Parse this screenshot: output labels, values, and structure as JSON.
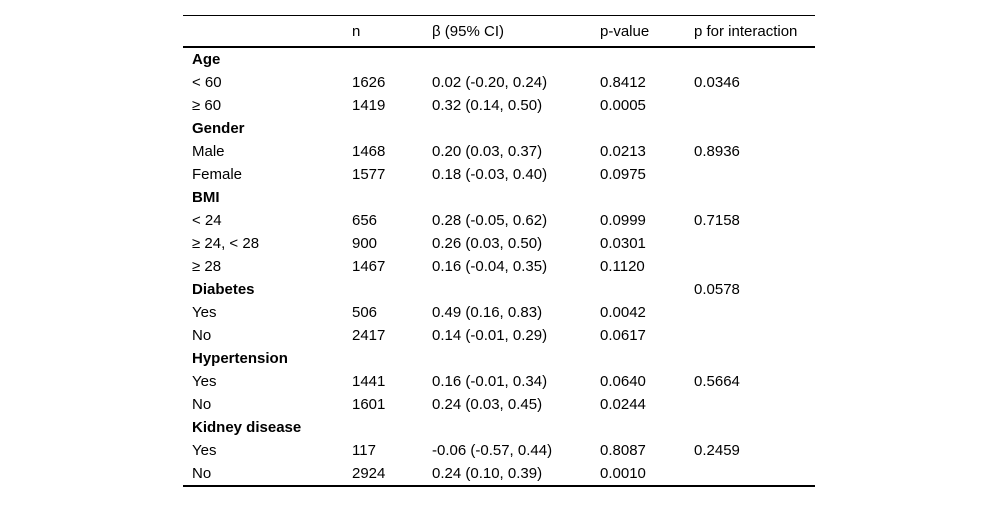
{
  "table": {
    "columns": [
      "",
      "n",
      "β (95% CI)",
      "p-value",
      "p for interaction"
    ],
    "rows": [
      {
        "group": true,
        "label": "Age",
        "n": "",
        "beta": "",
        "p": "",
        "p_interaction": ""
      },
      {
        "group": false,
        "label": "< 60",
        "n": "1626",
        "beta": "0.02 (-0.20, 0.24)",
        "p": "0.8412",
        "p_interaction": "0.0346"
      },
      {
        "group": false,
        "label": "≥ 60",
        "n": "1419",
        "beta": "0.32 (0.14, 0.50)",
        "p": "0.0005",
        "p_interaction": ""
      },
      {
        "group": true,
        "label": "Gender",
        "n": "",
        "beta": "",
        "p": "",
        "p_interaction": ""
      },
      {
        "group": false,
        "label": "Male",
        "n": "1468",
        "beta": "0.20 (0.03, 0.37)",
        "p": "0.0213",
        "p_interaction": "0.8936"
      },
      {
        "group": false,
        "label": "Female",
        "n": "1577",
        "beta": "0.18 (-0.03, 0.40)",
        "p": "0.0975",
        "p_interaction": ""
      },
      {
        "group": true,
        "label": "BMI",
        "n": "",
        "beta": "",
        "p": "",
        "p_interaction": ""
      },
      {
        "group": false,
        "label": "< 24",
        "n": "656",
        "beta": "0.28 (-0.05, 0.62)",
        "p": "0.0999",
        "p_interaction": "0.7158"
      },
      {
        "group": false,
        "label": "≥ 24, < 28",
        "n": "900",
        "beta": "0.26 (0.03, 0.50)",
        "p": "0.0301",
        "p_interaction": ""
      },
      {
        "group": false,
        "label": "≥ 28",
        "n": "1467",
        "beta": "0.16 (-0.04, 0.35)",
        "p": "0.1120",
        "p_interaction": ""
      },
      {
        "group": true,
        "label": "Diabetes",
        "n": "",
        "beta": "",
        "p": "",
        "p_interaction": "0.0578"
      },
      {
        "group": false,
        "label": "Yes",
        "n": "506",
        "beta": "0.49 (0.16, 0.83)",
        "p": "0.0042",
        "p_interaction": ""
      },
      {
        "group": false,
        "label": "No",
        "n": "2417",
        "beta": "0.14 (-0.01, 0.29)",
        "p": "0.0617",
        "p_interaction": ""
      },
      {
        "group": true,
        "label": "Hypertension",
        "n": "",
        "beta": "",
        "p": "",
        "p_interaction": ""
      },
      {
        "group": false,
        "label": "Yes",
        "n": "1441",
        "beta": "0.16 (-0.01, 0.34)",
        "p": "0.0640",
        "p_interaction": "0.5664"
      },
      {
        "group": false,
        "label": "No",
        "n": "1601",
        "beta": "0.24 (0.03, 0.45)",
        "p": "0.0244",
        "p_interaction": ""
      },
      {
        "group": true,
        "label": "Kidney disease",
        "n": "",
        "beta": "",
        "p": "",
        "p_interaction": ""
      },
      {
        "group": false,
        "label": "Yes",
        "n": "117",
        "beta": "-0.06 (-0.57, 0.44)",
        "p": "0.8087",
        "p_interaction": "0.2459"
      },
      {
        "group": false,
        "label": "No",
        "n": "2924",
        "beta": "0.24 (0.10, 0.39)",
        "p": "0.0010",
        "p_interaction": ""
      }
    ]
  }
}
